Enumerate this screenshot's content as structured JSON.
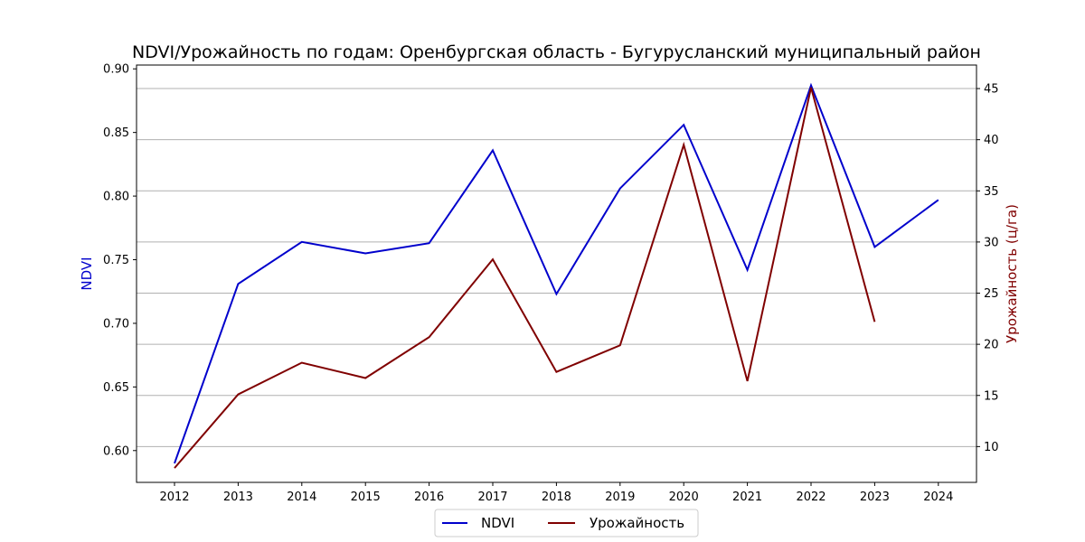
{
  "chart_data": {
    "type": "line",
    "title": "NDVI/Урожайность по годам: Оренбургская область - Бугурусланский муниципальный район",
    "x": [
      "2012",
      "2013",
      "2014",
      "2015",
      "2016",
      "2017",
      "2018",
      "2019",
      "2020",
      "2021",
      "2022",
      "2023",
      "2024"
    ],
    "xticks": [
      "2012",
      "2013",
      "2014",
      "2015",
      "2016",
      "2017",
      "2018",
      "2019",
      "2020",
      "2021",
      "2022",
      "2023",
      "2024"
    ],
    "series": [
      {
        "name": "NDVI",
        "axis": "left",
        "color": "#0000cc",
        "values": [
          0.59,
          0.731,
          0.764,
          0.755,
          0.763,
          0.836,
          0.723,
          0.806,
          0.856,
          0.742,
          0.887,
          0.76,
          0.797
        ]
      },
      {
        "name": "Урожайность",
        "axis": "right",
        "color": "#800000",
        "values": [
          7.9,
          15.1,
          18.2,
          16.7,
          20.7,
          28.3,
          17.3,
          19.9,
          39.5,
          16.4,
          45.1,
          22.2,
          null
        ]
      }
    ],
    "ylabel": "NDVI",
    "ylabel_color": "#0000cc",
    "ylim": [
      0.575,
      0.903
    ],
    "yticks": [
      "0.60",
      "0.65",
      "0.70",
      "0.75",
      "0.80",
      "0.85",
      "0.90"
    ],
    "y2label": "Урожайность (ц/га)",
    "y2label_color": "#800000",
    "y2lim": [
      6.5,
      47.3
    ],
    "y2ticks": [
      "10",
      "15",
      "20",
      "25",
      "30",
      "35",
      "40",
      "45"
    ],
    "grid": "horizontal (right axis)",
    "legend": "bottom-center"
  }
}
